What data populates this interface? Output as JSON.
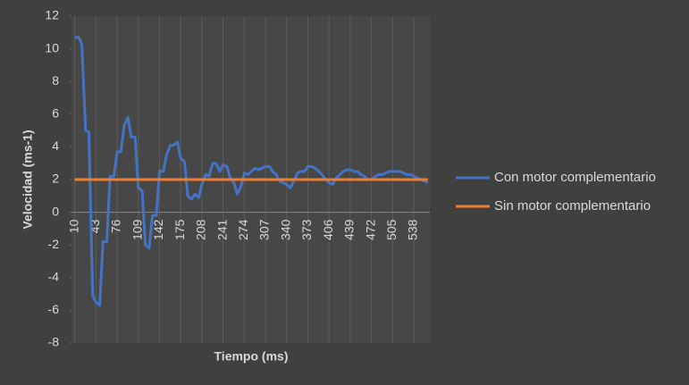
{
  "chart_data": {
    "type": "line",
    "xlabel": "Tiempo (ms)",
    "ylabel": "Velocidad (ms-1)",
    "xlim": [
      5,
      563
    ],
    "xticks": [
      10,
      43,
      76,
      109,
      142,
      175,
      208,
      241,
      274,
      307,
      340,
      373,
      406,
      439,
      472,
      505,
      538
    ],
    "ylim": [
      -8,
      12
    ],
    "yticks": [
      -8,
      -6,
      -4,
      -2,
      0,
      2,
      4,
      6,
      8,
      10,
      12
    ],
    "grid": true,
    "legend": "right",
    "series": [
      {
        "name": "Con motor complementario",
        "color": "#4472c4",
        "x": [
          10,
          16,
          21,
          27,
          32,
          38,
          43,
          49,
          54,
          60,
          65,
          71,
          76,
          82,
          87,
          93,
          98,
          104,
          109,
          115,
          120,
          126,
          131,
          137,
          142,
          148,
          153,
          159,
          164,
          170,
          175,
          181,
          186,
          192,
          197,
          203,
          208,
          214,
          219,
          225,
          230,
          236,
          241,
          247,
          252,
          258,
          263,
          269,
          274,
          280,
          285,
          291,
          296,
          302,
          307,
          313,
          318,
          324,
          329,
          335,
          340,
          346,
          351,
          357,
          362,
          368,
          373,
          379,
          384,
          390,
          395,
          401,
          406,
          412,
          417,
          423,
          428,
          434,
          439,
          445,
          450,
          456,
          461,
          467,
          472,
          478,
          483,
          489,
          494,
          500,
          505,
          511,
          516,
          522,
          527,
          533,
          538,
          544,
          549,
          555,
          560
        ],
        "values": [
          10.7,
          10.7,
          10.3,
          5.0,
          4.9,
          -5.1,
          -5.5,
          -5.7,
          -1.8,
          -1.8,
          2.2,
          2.2,
          3.7,
          3.7,
          5.3,
          5.8,
          4.6,
          4.6,
          1.5,
          1.3,
          -2.0,
          -2.2,
          -0.2,
          -0.2,
          2.5,
          2.5,
          3.5,
          4.1,
          4.1,
          4.3,
          3.3,
          3.1,
          1.0,
          0.8,
          1.1,
          0.9,
          1.7,
          2.3,
          2.2,
          3.0,
          3.0,
          2.5,
          2.9,
          2.8,
          2.1,
          1.8,
          1.1,
          1.6,
          2.4,
          2.3,
          2.5,
          2.7,
          2.6,
          2.7,
          2.8,
          2.8,
          2.5,
          2.3,
          1.9,
          1.8,
          1.7,
          1.5,
          1.9,
          2.4,
          2.5,
          2.5,
          2.8,
          2.8,
          2.7,
          2.5,
          2.3,
          2.0,
          1.8,
          1.7,
          2.1,
          2.3,
          2.5,
          2.6,
          2.6,
          2.5,
          2.5,
          2.3,
          2.2,
          2.0,
          2.0,
          2.2,
          2.3,
          2.3,
          2.4,
          2.5,
          2.5,
          2.5,
          2.5,
          2.4,
          2.3,
          2.3,
          2.2,
          2.1,
          2.0,
          1.9,
          1.8
        ]
      },
      {
        "name": "Sin motor complementario",
        "color": "#ed7d31",
        "x": [
          10,
          560
        ],
        "values": [
          2,
          2
        ]
      }
    ]
  }
}
